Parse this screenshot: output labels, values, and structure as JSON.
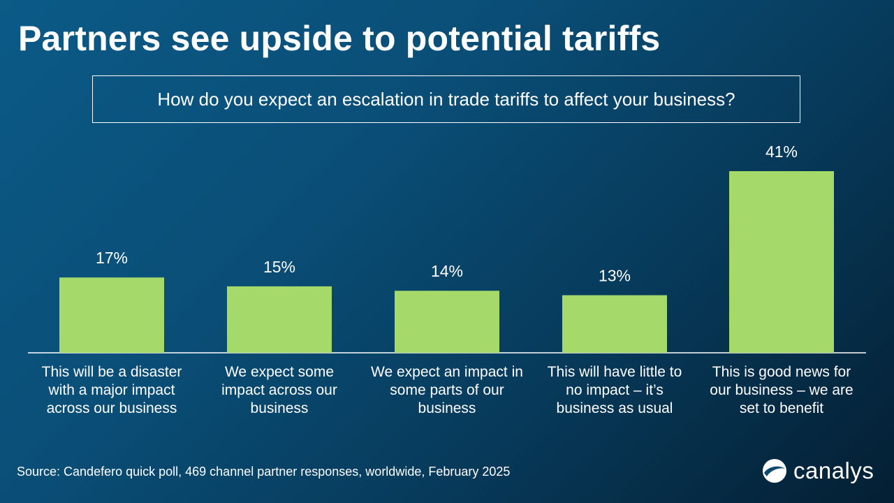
{
  "title": "Partners see upside to potential tariffs",
  "question": "How do you expect an escalation in trade tariffs to affect your business?",
  "source": "Source: Candefero quick poll, 469 channel partner responses, worldwide, February 2025",
  "logo_text": "canalys",
  "logo_icon": "canalys-swirl-icon",
  "colors": {
    "bar": "#a5d96a",
    "axis": "#ffffff",
    "text": "#ffffff"
  },
  "chart_data": {
    "type": "bar",
    "title": "How do you expect an escalation in trade tariffs to affect your business?",
    "xlabel": "",
    "ylabel": "",
    "ylim": [
      0,
      45
    ],
    "grid": false,
    "categories": [
      "This will be a disaster with a major impact across our business",
      "We expect some impact across our business",
      "We expect an impact in some parts of our business",
      "This will have little to no impact – it’s business as usual",
      "This is good news for our business – we are set to benefit"
    ],
    "category_lines": [
      [
        "This will be a disaster",
        "with a major impact",
        "across our business"
      ],
      [
        "We expect some",
        "impact across our",
        "business"
      ],
      [
        "We expect an impact in",
        "some parts of our",
        "business"
      ],
      [
        "This will have little to",
        "no impact – it’s",
        "business as usual"
      ],
      [
        "This is good news for",
        "our business – we are",
        "set to benefit"
      ]
    ],
    "values": [
      17,
      15,
      14,
      13,
      41
    ],
    "value_labels": [
      "17%",
      "15%",
      "14%",
      "13%",
      "41%"
    ]
  }
}
